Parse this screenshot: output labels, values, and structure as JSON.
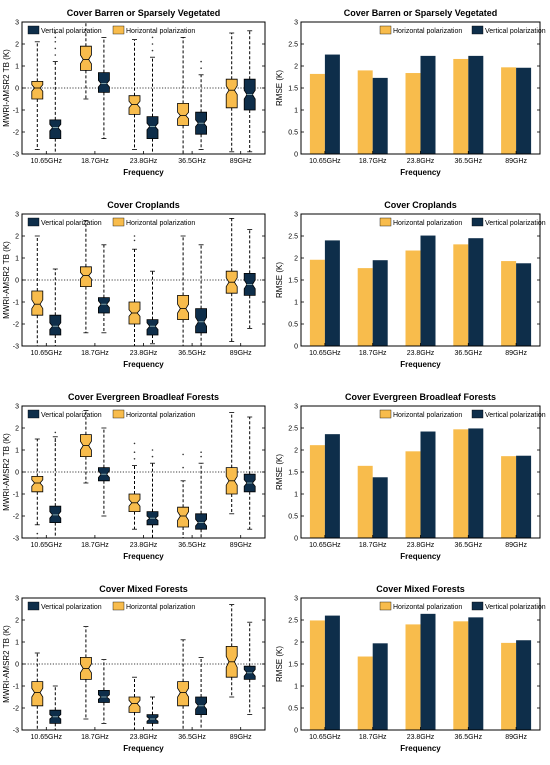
{
  "colors": {
    "horizontal": "#F8BC4C",
    "vertical": "#0E2E4A",
    "axis": "#000000"
  },
  "frequencies": [
    "10.65GHz",
    "18.7GHz",
    "23.8GHz",
    "36.5GHz",
    "89GHz"
  ],
  "legend": {
    "vertical": "Vertical polarization",
    "horizontal": "Horizontal polarization"
  },
  "chart_data": [
    {
      "type": "box",
      "title": "Cover  Barren or Sparsely Vegetated",
      "xlabel": "Frequency",
      "ylabel": "MWRI-AMSR2 TB (K)",
      "ylim": [
        -3,
        3
      ],
      "yticks": [
        -3,
        -2,
        -1,
        0,
        1,
        2,
        3
      ],
      "reference_line": 0,
      "legend_order": [
        "vertical",
        "horizontal"
      ],
      "series": [
        {
          "name": "Horizontal polarization",
          "key": "horizontal",
          "boxes": [
            {
              "q1": -0.5,
              "median": 0.0,
              "q3": 0.3,
              "notch": [
                -0.15,
                0.15
              ],
              "wl": -2.8,
              "wh": 2.1,
              "outliers": []
            },
            {
              "q1": 0.8,
              "median": 1.3,
              "q3": 1.9,
              "notch": [
                1.1,
                1.5
              ],
              "wl": -0.5,
              "wh": 3.0,
              "outliers": []
            },
            {
              "q1": -1.2,
              "median": -0.75,
              "q3": -0.35,
              "notch": [
                -0.9,
                -0.6
              ],
              "wl": -2.8,
              "wh": 2.2,
              "outliers": []
            },
            {
              "q1": -1.7,
              "median": -1.25,
              "q3": -0.7,
              "notch": [
                -1.4,
                -1.1
              ],
              "wl": -3.0,
              "wh": 2.3,
              "outliers": []
            },
            {
              "q1": -0.9,
              "median": -0.1,
              "q3": 0.4,
              "notch": [
                -0.3,
                0.1
              ],
              "wl": -2.9,
              "wh": 2.5,
              "outliers": []
            }
          ]
        },
        {
          "name": "Vertical polarization",
          "key": "vertical",
          "boxes": [
            {
              "q1": -2.3,
              "median": -1.8,
              "q3": -1.45,
              "notch": [
                -1.95,
                -1.65
              ],
              "wl": -3.0,
              "wh": 1.2,
              "outliers": [
                1.5,
                1.8,
                2.1,
                2.3,
                2.5
              ]
            },
            {
              "q1": -0.2,
              "median": 0.2,
              "q3": 0.7,
              "notch": [
                0.05,
                0.35
              ],
              "wl": -2.3,
              "wh": 2.3,
              "outliers": []
            },
            {
              "q1": -2.3,
              "median": -1.75,
              "q3": -1.3,
              "notch": [
                -1.9,
                -1.6
              ],
              "wl": -3.0,
              "wh": 1.4,
              "outliers": [
                1.7,
                2.0,
                2.3
              ]
            },
            {
              "q1": -2.1,
              "median": -1.6,
              "q3": -1.1,
              "notch": [
                -1.75,
                -1.45
              ],
              "wl": -2.8,
              "wh": 0.6,
              "outliers": [
                0.9,
                1.2
              ]
            },
            {
              "q1": -1.0,
              "median": -0.3,
              "q3": 0.4,
              "notch": [
                -0.5,
                -0.1
              ],
              "wl": -2.9,
              "wh": 2.6,
              "outliers": []
            }
          ]
        }
      ]
    },
    {
      "type": "bar",
      "title": "Cover  Barren or Sparsely Vegetated",
      "xlabel": "Frequency",
      "ylabel": "RMSE (K)",
      "ylim": [
        0,
        3
      ],
      "yticks": [
        0,
        0.5,
        1,
        1.5,
        2,
        2.5,
        3
      ],
      "legend_order": [
        "horizontal",
        "vertical"
      ],
      "series": [
        {
          "name": "Horizontal polarization",
          "key": "horizontal",
          "values": [
            1.82,
            1.9,
            1.84,
            2.16,
            1.97
          ]
        },
        {
          "name": "Vertical polarization",
          "key": "vertical",
          "values": [
            2.26,
            1.73,
            2.23,
            2.23,
            1.96
          ]
        }
      ]
    },
    {
      "type": "box",
      "title": "Cover  Croplands",
      "xlabel": "Frequency",
      "ylabel": "MWRI-AMSR2 TB (K)",
      "ylim": [
        -3,
        3
      ],
      "yticks": [
        -3,
        -2,
        -1,
        0,
        1,
        2,
        3
      ],
      "reference_line": 0,
      "legend_order": [
        "vertical",
        "horizontal"
      ],
      "series": [
        {
          "name": "Horizontal polarization",
          "key": "horizontal",
          "boxes": [
            {
              "q1": -1.6,
              "median": -1.1,
              "q3": -0.5,
              "notch": [
                -1.3,
                -0.9
              ],
              "wl": -3.0,
              "wh": 2.0,
              "outliers": []
            },
            {
              "q1": -0.3,
              "median": 0.2,
              "q3": 0.6,
              "notch": [
                0.05,
                0.35
              ],
              "wl": -2.4,
              "wh": 2.7,
              "outliers": []
            },
            {
              "q1": -2.0,
              "median": -1.5,
              "q3": -1.0,
              "notch": [
                -1.65,
                -1.35
              ],
              "wl": -3.0,
              "wh": 1.4,
              "outliers": [
                1.8,
                2.0
              ]
            },
            {
              "q1": -1.8,
              "median": -1.3,
              "q3": -0.7,
              "notch": [
                -1.5,
                -1.1
              ],
              "wl": -3.0,
              "wh": 2.0,
              "outliers": []
            },
            {
              "q1": -0.6,
              "median": -0.1,
              "q3": 0.4,
              "notch": [
                -0.3,
                0.1
              ],
              "wl": -2.8,
              "wh": 2.8,
              "outliers": []
            }
          ]
        },
        {
          "name": "Vertical polarization",
          "key": "vertical",
          "boxes": [
            {
              "q1": -2.5,
              "median": -2.1,
              "q3": -1.6,
              "notch": [
                -2.25,
                -1.95
              ],
              "wl": -3.0,
              "wh": 0.5,
              "outliers": []
            },
            {
              "q1": -1.5,
              "median": -1.1,
              "q3": -0.8,
              "notch": [
                -1.25,
                -0.95
              ],
              "wl": -2.4,
              "wh": 1.6,
              "outliers": []
            },
            {
              "q1": -2.5,
              "median": -2.1,
              "q3": -1.8,
              "notch": [
                -2.25,
                -1.95
              ],
              "wl": -2.9,
              "wh": 0.4,
              "outliers": []
            },
            {
              "q1": -2.4,
              "median": -1.9,
              "q3": -1.3,
              "notch": [
                -2.1,
                -1.7
              ],
              "wl": -3.0,
              "wh": 1.6,
              "outliers": []
            },
            {
              "q1": -0.7,
              "median": -0.2,
              "q3": 0.3,
              "notch": [
                -0.4,
                0.0
              ],
              "wl": -2.2,
              "wh": 2.3,
              "outliers": []
            }
          ]
        }
      ]
    },
    {
      "type": "bar",
      "title": "Cover  Croplands",
      "xlabel": "Frequency",
      "ylabel": "RMSE (K)",
      "ylim": [
        0,
        3
      ],
      "yticks": [
        0,
        0.5,
        1,
        1.5,
        2,
        2.5,
        3
      ],
      "legend_order": [
        "horizontal",
        "vertical"
      ],
      "series": [
        {
          "name": "Horizontal polarization",
          "key": "horizontal",
          "values": [
            1.96,
            1.77,
            2.17,
            2.31,
            1.93
          ]
        },
        {
          "name": "Vertical polarization",
          "key": "vertical",
          "values": [
            2.4,
            1.95,
            2.51,
            2.45,
            1.88
          ]
        }
      ]
    },
    {
      "type": "box",
      "title": "Cover  Evergreen Broadleaf Forests",
      "xlabel": "Frequency",
      "ylabel": "MWRI-AMSR2 TB (K)",
      "ylim": [
        -3,
        3
      ],
      "yticks": [
        -3,
        -2,
        -1,
        0,
        1,
        2,
        3
      ],
      "reference_line": 0,
      "legend_order": [
        "vertical",
        "horizontal"
      ],
      "series": [
        {
          "name": "Horizontal polarization",
          "key": "horizontal",
          "boxes": [
            {
              "q1": -0.9,
              "median": -0.5,
              "q3": -0.2,
              "notch": [
                -0.65,
                -0.35
              ],
              "wl": -2.4,
              "wh": 1.5,
              "outliers": [
                -2.8,
                -3.0
              ]
            },
            {
              "q1": 0.7,
              "median": 1.2,
              "q3": 1.7,
              "notch": [
                1.0,
                1.4
              ],
              "wl": -0.5,
              "wh": 2.8,
              "outliers": []
            },
            {
              "q1": -1.8,
              "median": -1.4,
              "q3": -1.0,
              "notch": [
                -1.55,
                -1.25
              ],
              "wl": -2.6,
              "wh": 0.3,
              "outliers": [
                0.6,
                0.9,
                1.3
              ]
            },
            {
              "q1": -2.5,
              "median": -2.0,
              "q3": -1.6,
              "notch": [
                -2.2,
                -1.8
              ],
              "wl": -3.0,
              "wh": -0.4,
              "outliers": [
                0.2,
                0.8
              ]
            },
            {
              "q1": -1.0,
              "median": -0.4,
              "q3": 0.2,
              "notch": [
                -0.6,
                -0.2
              ],
              "wl": -1.9,
              "wh": 2.7,
              "outliers": []
            }
          ]
        },
        {
          "name": "Vertical polarization",
          "key": "vertical",
          "boxes": [
            {
              "q1": -2.3,
              "median": -1.95,
              "q3": -1.55,
              "notch": [
                -2.1,
                -1.8
              ],
              "wl": -3.0,
              "wh": 1.6,
              "outliers": [
                0.6,
                1.0,
                1.4,
                1.8
              ]
            },
            {
              "q1": -0.4,
              "median": -0.1,
              "q3": 0.2,
              "notch": [
                -0.25,
                0.05
              ],
              "wl": -2.0,
              "wh": 2.0,
              "outliers": []
            },
            {
              "q1": -2.4,
              "median": -2.1,
              "q3": -1.8,
              "notch": [
                -2.2,
                -2.0
              ],
              "wl": -3.0,
              "wh": 0.4,
              "outliers": [
                0.7,
                1.0
              ]
            },
            {
              "q1": -2.6,
              "median": -2.3,
              "q3": -1.9,
              "notch": [
                -2.45,
                -2.15
              ],
              "wl": -3.0,
              "wh": 0.4,
              "outliers": [
                0.7,
                0.9
              ]
            },
            {
              "q1": -0.9,
              "median": -0.5,
              "q3": -0.1,
              "notch": [
                -0.65,
                -0.35
              ],
              "wl": -2.6,
              "wh": 2.5,
              "outliers": []
            }
          ]
        }
      ]
    },
    {
      "type": "bar",
      "title": "Cover  Evergreen Broadleaf Forests",
      "xlabel": "Frequency",
      "ylabel": "RMSE (K)",
      "ylim": [
        0,
        3
      ],
      "yticks": [
        0,
        0.5,
        1,
        1.5,
        2,
        2.5,
        3
      ],
      "legend_order": [
        "horizontal",
        "vertical"
      ],
      "series": [
        {
          "name": "Horizontal polarization",
          "key": "horizontal",
          "values": [
            2.11,
            1.64,
            1.97,
            2.47,
            1.86
          ]
        },
        {
          "name": "Vertical polarization",
          "key": "vertical",
          "values": [
            2.36,
            1.38,
            2.42,
            2.49,
            1.87
          ]
        }
      ]
    },
    {
      "type": "box",
      "title": "Cover  Mixed Forests",
      "xlabel": "Frequency",
      "ylabel": "MWRI-AMSR2 TB (K)",
      "ylim": [
        -3,
        3
      ],
      "yticks": [
        -3,
        -2,
        -1,
        0,
        1,
        2,
        3
      ],
      "reference_line": 0,
      "legend_order": [
        "vertical",
        "horizontal"
      ],
      "series": [
        {
          "name": "Horizontal polarization",
          "key": "horizontal",
          "boxes": [
            {
              "q1": -1.9,
              "median": -1.3,
              "q3": -0.8,
              "notch": [
                -1.5,
                -1.1
              ],
              "wl": -3.0,
              "wh": 0.5,
              "outliers": []
            },
            {
              "q1": -0.7,
              "median": -0.2,
              "q3": 0.3,
              "notch": [
                -0.4,
                0.0
              ],
              "wl": -2.5,
              "wh": 1.7,
              "outliers": []
            },
            {
              "q1": -2.2,
              "median": -1.8,
              "q3": -1.5,
              "notch": [
                -1.95,
                -1.65
              ],
              "wl": -3.0,
              "wh": -0.6,
              "outliers": []
            },
            {
              "q1": -1.9,
              "median": -1.3,
              "q3": -0.8,
              "notch": [
                -1.5,
                -1.1
              ],
              "wl": -3.0,
              "wh": 1.1,
              "outliers": []
            },
            {
              "q1": -0.6,
              "median": 0.1,
              "q3": 0.8,
              "notch": [
                -0.15,
                0.35
              ],
              "wl": -1.5,
              "wh": 2.7,
              "outliers": []
            }
          ]
        },
        {
          "name": "Vertical polarization",
          "key": "vertical",
          "boxes": [
            {
              "q1": -2.7,
              "median": -2.4,
              "q3": -2.1,
              "notch": [
                -2.5,
                -2.3
              ],
              "wl": -3.0,
              "wh": -1.0,
              "outliers": []
            },
            {
              "q1": -1.75,
              "median": -1.5,
              "q3": -1.2,
              "notch": [
                -1.6,
                -1.4
              ],
              "wl": -2.7,
              "wh": 0.2,
              "outliers": []
            },
            {
              "q1": -2.7,
              "median": -2.5,
              "q3": -2.3,
              "notch": [
                -2.6,
                -2.4
              ],
              "wl": -3.0,
              "wh": -1.5,
              "outliers": []
            },
            {
              "q1": -2.3,
              "median": -1.9,
              "q3": -1.5,
              "notch": [
                -2.05,
                -1.75
              ],
              "wl": -3.0,
              "wh": 0.3,
              "outliers": []
            },
            {
              "q1": -0.7,
              "median": -0.4,
              "q3": -0.1,
              "notch": [
                -0.55,
                -0.25
              ],
              "wl": -2.3,
              "wh": 1.9,
              "outliers": []
            }
          ]
        }
      ]
    },
    {
      "type": "bar",
      "title": "Cover  Mixed Forests",
      "xlabel": "Frequency",
      "ylabel": "RMSE (K)",
      "ylim": [
        0,
        3
      ],
      "yticks": [
        0,
        0.5,
        1,
        1.5,
        2,
        2.5,
        3
      ],
      "legend_order": [
        "horizontal",
        "vertical"
      ],
      "series": [
        {
          "name": "Horizontal polarization",
          "key": "horizontal",
          "values": [
            2.49,
            1.67,
            2.4,
            2.47,
            1.98
          ]
        },
        {
          "name": "Vertical polarization",
          "key": "vertical",
          "values": [
            2.6,
            1.97,
            2.64,
            2.56,
            2.04
          ]
        }
      ]
    }
  ]
}
